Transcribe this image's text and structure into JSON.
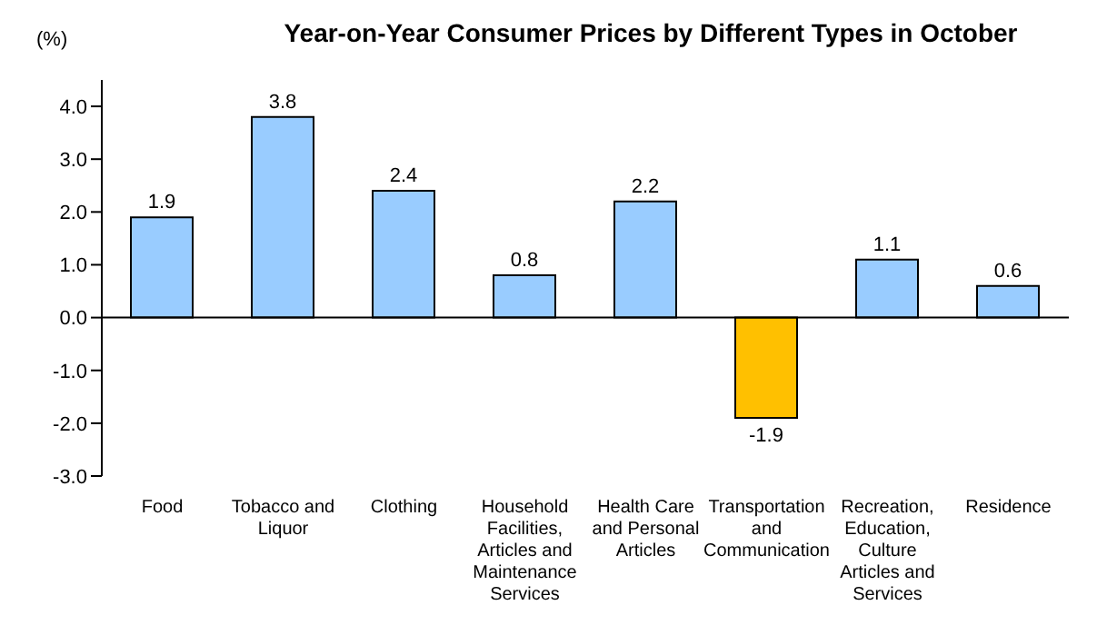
{
  "chart_data": {
    "type": "bar",
    "title": "Year-on-Year Consumer Prices by Different Types in October",
    "ylabel": "(%)",
    "categories": [
      "Food",
      "Tobacco and Liquor",
      "Clothing",
      "Household Facilities, Articles and Maintenance Services",
      "Health Care and Personal Articles",
      "Transportation and Communication",
      "Recreation, Education, Culture Articles and Services",
      "Residence"
    ],
    "values": [
      1.9,
      3.8,
      2.4,
      0.8,
      2.2,
      -1.9,
      1.1,
      0.6
    ],
    "colors": [
      "#99ccff",
      "#99ccff",
      "#99ccff",
      "#99ccff",
      "#99ccff",
      "#ffc000",
      "#99ccff",
      "#99ccff"
    ],
    "ylim": [
      -3,
      4.5
    ],
    "yticks": [
      {
        "value": -3,
        "label": "-3.0"
      },
      {
        "value": -2,
        "label": "-2.0"
      },
      {
        "value": -1,
        "label": "-1.0"
      },
      {
        "value": 0,
        "label": "0.0"
      },
      {
        "value": 1,
        "label": "1.0"
      },
      {
        "value": 2,
        "label": "2.0"
      },
      {
        "value": 3,
        "label": "3.0"
      },
      {
        "value": 4,
        "label": "4.0"
      }
    ],
    "data_labels": true
  }
}
